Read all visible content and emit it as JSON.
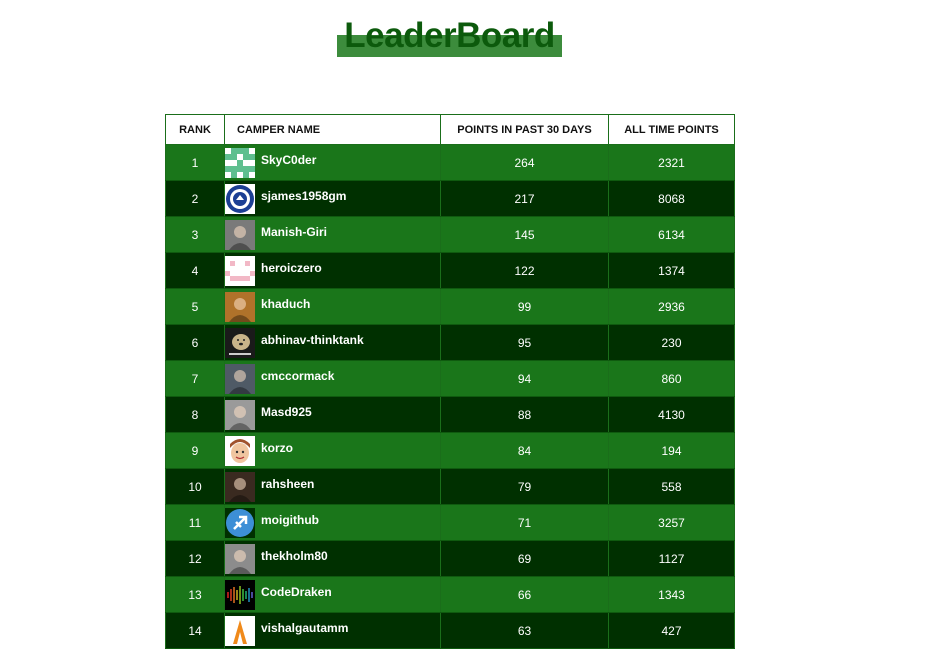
{
  "header": {
    "title": "LeaderBoard"
  },
  "table": {
    "columns": {
      "rank": "RANK",
      "name": "CAMPER NAME",
      "recent": "POINTS IN PAST 30 DAYS",
      "alltime": "ALL TIME POINTS"
    },
    "rows": [
      {
        "rank": "1",
        "name": "SkyC0der",
        "recent": "264",
        "alltime": "2321",
        "avatar": "identicon-avatar",
        "avatar_color": "#5fbf8f"
      },
      {
        "rank": "2",
        "name": "sjames1958gm",
        "recent": "217",
        "alltime": "8068",
        "avatar": "club-crest-avatar",
        "avatar_color": "#1c3f94"
      },
      {
        "rank": "3",
        "name": "Manish-Giri",
        "recent": "145",
        "alltime": "6134",
        "avatar": "photo-avatar",
        "avatar_color": "#7a7a7a"
      },
      {
        "rank": "4",
        "name": "heroiczero",
        "recent": "122",
        "alltime": "1374",
        "avatar": "pixel-face-avatar",
        "avatar_color": "#f2b8c6"
      },
      {
        "rank": "5",
        "name": "khaduch",
        "recent": "99",
        "alltime": "2936",
        "avatar": "photo-avatar",
        "avatar_color": "#b0722a"
      },
      {
        "rank": "6",
        "name": "abhinav-thinktank",
        "recent": "95",
        "alltime": "230",
        "avatar": "dog-photo-avatar",
        "avatar_color": "#c9b48a"
      },
      {
        "rank": "7",
        "name": "cmccormack",
        "recent": "94",
        "alltime": "860",
        "avatar": "photo-avatar",
        "avatar_color": "#4f5a66"
      },
      {
        "rank": "8",
        "name": "Masd925",
        "recent": "88",
        "alltime": "4130",
        "avatar": "photo-avatar",
        "avatar_color": "#9a9a9a"
      },
      {
        "rank": "9",
        "name": "korzo",
        "recent": "84",
        "alltime": "194",
        "avatar": "cartoon-face-avatar",
        "avatar_color": "#f0c6a0"
      },
      {
        "rank": "10",
        "name": "rahsheen",
        "recent": "79",
        "alltime": "558",
        "avatar": "photo-avatar",
        "avatar_color": "#3a2a20"
      },
      {
        "rank": "11",
        "name": "moigithub",
        "recent": "71",
        "alltime": "3257",
        "avatar": "sagittarius-avatar",
        "avatar_color": "#3d8fd6"
      },
      {
        "rank": "12",
        "name": "thekholm80",
        "recent": "69",
        "alltime": "1127",
        "avatar": "photo-avatar",
        "avatar_color": "#8c8c8c"
      },
      {
        "rank": "13",
        "name": "CodeDraken",
        "recent": "66",
        "alltime": "1343",
        "avatar": "equalizer-avatar",
        "avatar_color": "#000000"
      },
      {
        "rank": "14",
        "name": "vishalgautamm",
        "recent": "63",
        "alltime": "427",
        "avatar": "logo-avatar",
        "avatar_color": "#f08a1a"
      }
    ]
  }
}
